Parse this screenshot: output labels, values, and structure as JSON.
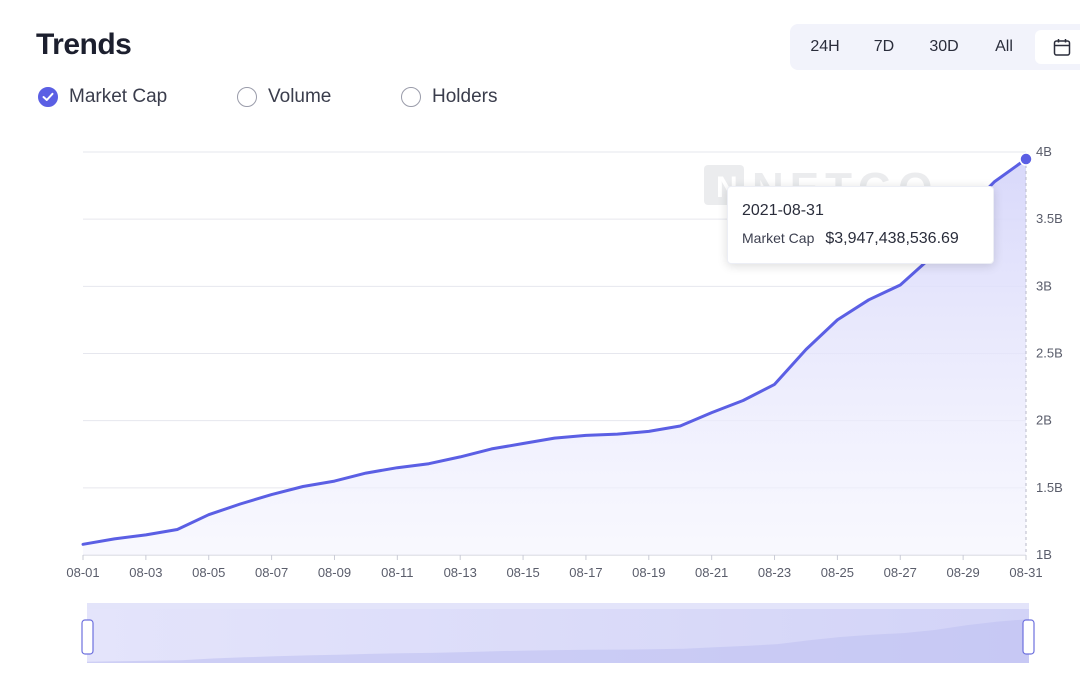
{
  "header": {
    "title": "Trends",
    "ranges": [
      "24H",
      "7D",
      "30D",
      "All"
    ]
  },
  "toggles": [
    {
      "label": "Market Cap",
      "checked": true
    },
    {
      "label": "Volume",
      "checked": false
    },
    {
      "label": "Holders",
      "checked": false
    }
  ],
  "tooltip": {
    "date": "2021-08-31",
    "series": "Market Cap",
    "value": "$3,947,438,536.69"
  },
  "watermark": "NETGO",
  "colors": {
    "accent": "#5b5fe4",
    "area_fill": "#dcdcfb",
    "grid": "#e6e7ee"
  },
  "chart_data": {
    "type": "area",
    "x": [
      "08-01",
      "08-02",
      "08-03",
      "08-04",
      "08-05",
      "08-06",
      "08-07",
      "08-08",
      "08-09",
      "08-10",
      "08-11",
      "08-12",
      "08-13",
      "08-14",
      "08-15",
      "08-16",
      "08-17",
      "08-18",
      "08-19",
      "08-20",
      "08-21",
      "08-22",
      "08-23",
      "08-24",
      "08-25",
      "08-26",
      "08-27",
      "08-28",
      "08-29",
      "08-30",
      "08-31"
    ],
    "x_tick_labels": [
      "08-01",
      "08-03",
      "08-05",
      "08-07",
      "08-09",
      "08-11",
      "08-13",
      "08-15",
      "08-17",
      "08-19",
      "08-21",
      "08-23",
      "08-25",
      "08-27",
      "08-29",
      "08-31"
    ],
    "series": [
      {
        "name": "Market Cap",
        "values": [
          1.08,
          1.12,
          1.15,
          1.19,
          1.3,
          1.38,
          1.45,
          1.51,
          1.55,
          1.61,
          1.65,
          1.68,
          1.73,
          1.79,
          1.83,
          1.87,
          1.89,
          1.9,
          1.92,
          1.96,
          2.06,
          2.15,
          2.27,
          2.53,
          2.75,
          2.9,
          3.01,
          3.22,
          3.54,
          3.78,
          3.947438536
        ]
      }
    ],
    "y_unit": "B",
    "ylim": [
      1,
      4
    ],
    "y_ticks": [
      1,
      1.5,
      2,
      2.5,
      3,
      3.5,
      4
    ],
    "y_tick_labels": [
      "1B",
      "1.5B",
      "2B",
      "2.5B",
      "3B",
      "3.5B",
      "4B"
    ],
    "grid": true,
    "legend": "top-left"
  }
}
